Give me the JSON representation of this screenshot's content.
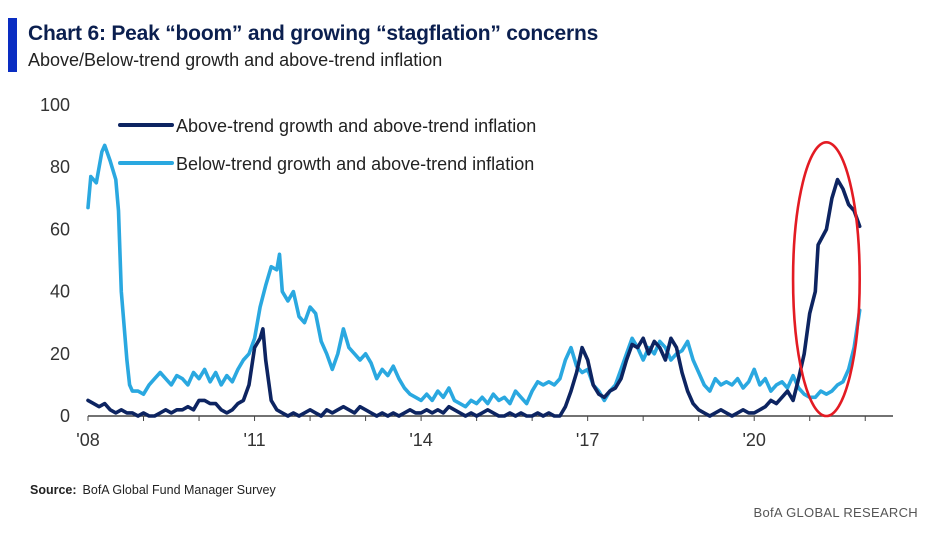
{
  "header": {
    "title": "Chart 6: Peak “boom” and growing “stagflation” concerns",
    "subtitle": "Above/Below-trend growth and above-trend inflation"
  },
  "footer": {
    "source_label": "Source:",
    "source_text": "BofA Global Fund Manager Survey",
    "brand": "BofA GLOBAL RESEARCH"
  },
  "colors": {
    "accent": "#0a2dc2",
    "dark_series": "#0d2461",
    "light_series": "#2aa8e0",
    "highlight": "#e31b23"
  },
  "chart_data": {
    "type": "line",
    "title": "Chart 6: Peak “boom” and growing “stagflation” concerns",
    "subtitle": "Above/Below-trend growth and above-trend inflation",
    "xlabel": "",
    "ylabel": "",
    "xlim": [
      2008.0,
      2022.5
    ],
    "ylim": [
      0,
      100
    ],
    "yticks": [
      0,
      20,
      40,
      60,
      80,
      100
    ],
    "xticks": [
      {
        "value": 2008,
        "label": "'08"
      },
      {
        "value": 2011,
        "label": "'11"
      },
      {
        "value": 2014,
        "label": "'14"
      },
      {
        "value": 2017,
        "label": "'17"
      },
      {
        "value": 2020,
        "label": "'20"
      }
    ],
    "grid": false,
    "legend_position": "top-center",
    "highlight": {
      "shape": "ellipse",
      "label": "",
      "x_range": [
        2020.7,
        2021.9
      ],
      "y_range": [
        0,
        88
      ]
    },
    "series": [
      {
        "name": "Above-trend growth and above-trend inflation",
        "color": "#0d2461",
        "points": [
          [
            2008.0,
            5
          ],
          [
            2008.1,
            4
          ],
          [
            2008.2,
            3
          ],
          [
            2008.3,
            4
          ],
          [
            2008.4,
            2
          ],
          [
            2008.5,
            1
          ],
          [
            2008.6,
            2
          ],
          [
            2008.7,
            1
          ],
          [
            2008.8,
            1
          ],
          [
            2008.9,
            0
          ],
          [
            2009.0,
            1
          ],
          [
            2009.1,
            0
          ],
          [
            2009.2,
            0
          ],
          [
            2009.3,
            1
          ],
          [
            2009.4,
            2
          ],
          [
            2009.5,
            1
          ],
          [
            2009.6,
            2
          ],
          [
            2009.7,
            2
          ],
          [
            2009.8,
            3
          ],
          [
            2009.9,
            2
          ],
          [
            2010.0,
            5
          ],
          [
            2010.1,
            5
          ],
          [
            2010.2,
            4
          ],
          [
            2010.3,
            4
          ],
          [
            2010.4,
            2
          ],
          [
            2010.5,
            1
          ],
          [
            2010.6,
            2
          ],
          [
            2010.7,
            4
          ],
          [
            2010.8,
            5
          ],
          [
            2010.9,
            10
          ],
          [
            2011.0,
            22
          ],
          [
            2011.1,
            25
          ],
          [
            2011.15,
            28
          ],
          [
            2011.2,
            18
          ],
          [
            2011.3,
            5
          ],
          [
            2011.4,
            2
          ],
          [
            2011.5,
            1
          ],
          [
            2011.6,
            0
          ],
          [
            2011.7,
            1
          ],
          [
            2011.8,
            0
          ],
          [
            2011.9,
            1
          ],
          [
            2012.0,
            2
          ],
          [
            2012.1,
            1
          ],
          [
            2012.2,
            0
          ],
          [
            2012.3,
            2
          ],
          [
            2012.4,
            1
          ],
          [
            2012.5,
            2
          ],
          [
            2012.6,
            3
          ],
          [
            2012.7,
            2
          ],
          [
            2012.8,
            1
          ],
          [
            2012.9,
            3
          ],
          [
            2013.0,
            2
          ],
          [
            2013.1,
            1
          ],
          [
            2013.2,
            0
          ],
          [
            2013.3,
            1
          ],
          [
            2013.4,
            0
          ],
          [
            2013.5,
            1
          ],
          [
            2013.6,
            0
          ],
          [
            2013.7,
            1
          ],
          [
            2013.8,
            2
          ],
          [
            2013.9,
            1
          ],
          [
            2014.0,
            1
          ],
          [
            2014.1,
            2
          ],
          [
            2014.2,
            1
          ],
          [
            2014.3,
            2
          ],
          [
            2014.4,
            1
          ],
          [
            2014.5,
            3
          ],
          [
            2014.6,
            2
          ],
          [
            2014.7,
            1
          ],
          [
            2014.8,
            0
          ],
          [
            2014.9,
            1
          ],
          [
            2015.0,
            0
          ],
          [
            2015.1,
            1
          ],
          [
            2015.2,
            2
          ],
          [
            2015.3,
            1
          ],
          [
            2015.4,
            0
          ],
          [
            2015.5,
            0
          ],
          [
            2015.6,
            1
          ],
          [
            2015.7,
            0
          ],
          [
            2015.8,
            1
          ],
          [
            2015.9,
            0
          ],
          [
            2016.0,
            0
          ],
          [
            2016.1,
            1
          ],
          [
            2016.2,
            0
          ],
          [
            2016.3,
            1
          ],
          [
            2016.4,
            0
          ],
          [
            2016.5,
            0
          ],
          [
            2016.6,
            3
          ],
          [
            2016.7,
            8
          ],
          [
            2016.8,
            14
          ],
          [
            2016.9,
            22
          ],
          [
            2017.0,
            18
          ],
          [
            2017.1,
            10
          ],
          [
            2017.2,
            7
          ],
          [
            2017.3,
            6
          ],
          [
            2017.4,
            8
          ],
          [
            2017.5,
            9
          ],
          [
            2017.6,
            12
          ],
          [
            2017.7,
            18
          ],
          [
            2017.8,
            23
          ],
          [
            2017.9,
            22
          ],
          [
            2018.0,
            25
          ],
          [
            2018.1,
            20
          ],
          [
            2018.2,
            24
          ],
          [
            2018.3,
            22
          ],
          [
            2018.4,
            18
          ],
          [
            2018.5,
            25
          ],
          [
            2018.6,
            22
          ],
          [
            2018.7,
            14
          ],
          [
            2018.8,
            8
          ],
          [
            2018.9,
            4
          ],
          [
            2019.0,
            2
          ],
          [
            2019.1,
            1
          ],
          [
            2019.2,
            0
          ],
          [
            2019.3,
            1
          ],
          [
            2019.4,
            2
          ],
          [
            2019.5,
            1
          ],
          [
            2019.6,
            0
          ],
          [
            2019.7,
            1
          ],
          [
            2019.8,
            2
          ],
          [
            2019.9,
            1
          ],
          [
            2020.0,
            1
          ],
          [
            2020.1,
            2
          ],
          [
            2020.2,
            3
          ],
          [
            2020.3,
            5
          ],
          [
            2020.4,
            4
          ],
          [
            2020.5,
            6
          ],
          [
            2020.6,
            8
          ],
          [
            2020.7,
            5
          ],
          [
            2020.8,
            12
          ],
          [
            2020.9,
            20
          ],
          [
            2021.0,
            33
          ],
          [
            2021.1,
            40
          ],
          [
            2021.15,
            55
          ],
          [
            2021.3,
            60
          ],
          [
            2021.4,
            70
          ],
          [
            2021.5,
            76
          ],
          [
            2021.6,
            73
          ],
          [
            2021.7,
            68
          ],
          [
            2021.8,
            66
          ],
          [
            2021.9,
            61
          ]
        ]
      },
      {
        "name": "Below-trend growth and above-trend inflation",
        "color": "#2aa8e0",
        "points": [
          [
            2008.0,
            67
          ],
          [
            2008.05,
            77
          ],
          [
            2008.15,
            75
          ],
          [
            2008.25,
            85
          ],
          [
            2008.3,
            87
          ],
          [
            2008.4,
            82
          ],
          [
            2008.5,
            76
          ],
          [
            2008.55,
            66
          ],
          [
            2008.6,
            40
          ],
          [
            2008.7,
            18
          ],
          [
            2008.75,
            10
          ],
          [
            2008.8,
            8
          ],
          [
            2008.9,
            8
          ],
          [
            2009.0,
            7
          ],
          [
            2009.1,
            10
          ],
          [
            2009.2,
            12
          ],
          [
            2009.3,
            14
          ],
          [
            2009.4,
            12
          ],
          [
            2009.5,
            10
          ],
          [
            2009.6,
            13
          ],
          [
            2009.7,
            12
          ],
          [
            2009.8,
            10
          ],
          [
            2009.9,
            14
          ],
          [
            2010.0,
            12
          ],
          [
            2010.1,
            15
          ],
          [
            2010.2,
            11
          ],
          [
            2010.3,
            14
          ],
          [
            2010.4,
            10
          ],
          [
            2010.5,
            13
          ],
          [
            2010.6,
            11
          ],
          [
            2010.7,
            15
          ],
          [
            2010.8,
            18
          ],
          [
            2010.9,
            20
          ],
          [
            2011.0,
            25
          ],
          [
            2011.1,
            35
          ],
          [
            2011.2,
            42
          ],
          [
            2011.3,
            48
          ],
          [
            2011.4,
            47
          ],
          [
            2011.45,
            52
          ],
          [
            2011.5,
            40
          ],
          [
            2011.6,
            37
          ],
          [
            2011.7,
            40
          ],
          [
            2011.8,
            32
          ],
          [
            2011.9,
            30
          ],
          [
            2012.0,
            35
          ],
          [
            2012.1,
            33
          ],
          [
            2012.2,
            24
          ],
          [
            2012.3,
            20
          ],
          [
            2012.4,
            15
          ],
          [
            2012.5,
            20
          ],
          [
            2012.6,
            28
          ],
          [
            2012.7,
            22
          ],
          [
            2012.8,
            20
          ],
          [
            2012.9,
            18
          ],
          [
            2013.0,
            20
          ],
          [
            2013.1,
            17
          ],
          [
            2013.2,
            12
          ],
          [
            2013.3,
            15
          ],
          [
            2013.4,
            13
          ],
          [
            2013.5,
            16
          ],
          [
            2013.6,
            12
          ],
          [
            2013.7,
            9
          ],
          [
            2013.8,
            7
          ],
          [
            2013.9,
            6
          ],
          [
            2014.0,
            5
          ],
          [
            2014.1,
            7
          ],
          [
            2014.2,
            5
          ],
          [
            2014.3,
            8
          ],
          [
            2014.4,
            6
          ],
          [
            2014.5,
            9
          ],
          [
            2014.6,
            5
          ],
          [
            2014.7,
            4
          ],
          [
            2014.8,
            3
          ],
          [
            2014.9,
            5
          ],
          [
            2015.0,
            4
          ],
          [
            2015.1,
            6
          ],
          [
            2015.2,
            4
          ],
          [
            2015.3,
            7
          ],
          [
            2015.4,
            5
          ],
          [
            2015.5,
            6
          ],
          [
            2015.6,
            4
          ],
          [
            2015.7,
            8
          ],
          [
            2015.8,
            6
          ],
          [
            2015.9,
            4
          ],
          [
            2016.0,
            8
          ],
          [
            2016.1,
            11
          ],
          [
            2016.2,
            10
          ],
          [
            2016.3,
            11
          ],
          [
            2016.4,
            10
          ],
          [
            2016.5,
            12
          ],
          [
            2016.6,
            18
          ],
          [
            2016.7,
            22
          ],
          [
            2016.8,
            16
          ],
          [
            2016.9,
            14
          ],
          [
            2017.0,
            15
          ],
          [
            2017.1,
            10
          ],
          [
            2017.2,
            8
          ],
          [
            2017.3,
            5
          ],
          [
            2017.4,
            8
          ],
          [
            2017.5,
            10
          ],
          [
            2017.6,
            15
          ],
          [
            2017.7,
            20
          ],
          [
            2017.8,
            25
          ],
          [
            2017.9,
            22
          ],
          [
            2018.0,
            18
          ],
          [
            2018.1,
            22
          ],
          [
            2018.2,
            20
          ],
          [
            2018.3,
            24
          ],
          [
            2018.4,
            22
          ],
          [
            2018.5,
            18
          ],
          [
            2018.6,
            20
          ],
          [
            2018.7,
            21
          ],
          [
            2018.8,
            24
          ],
          [
            2018.9,
            18
          ],
          [
            2019.0,
            14
          ],
          [
            2019.1,
            10
          ],
          [
            2019.2,
            8
          ],
          [
            2019.3,
            12
          ],
          [
            2019.4,
            10
          ],
          [
            2019.5,
            11
          ],
          [
            2019.6,
            10
          ],
          [
            2019.7,
            12
          ],
          [
            2019.8,
            9
          ],
          [
            2019.9,
            11
          ],
          [
            2020.0,
            15
          ],
          [
            2020.1,
            10
          ],
          [
            2020.2,
            12
          ],
          [
            2020.3,
            8
          ],
          [
            2020.4,
            10
          ],
          [
            2020.5,
            11
          ],
          [
            2020.6,
            9
          ],
          [
            2020.7,
            13
          ],
          [
            2020.8,
            9
          ],
          [
            2020.9,
            7
          ],
          [
            2021.0,
            6
          ],
          [
            2021.1,
            6
          ],
          [
            2021.2,
            8
          ],
          [
            2021.3,
            7
          ],
          [
            2021.4,
            8
          ],
          [
            2021.5,
            10
          ],
          [
            2021.6,
            11
          ],
          [
            2021.7,
            15
          ],
          [
            2021.8,
            22
          ],
          [
            2021.9,
            34
          ]
        ]
      }
    ]
  }
}
